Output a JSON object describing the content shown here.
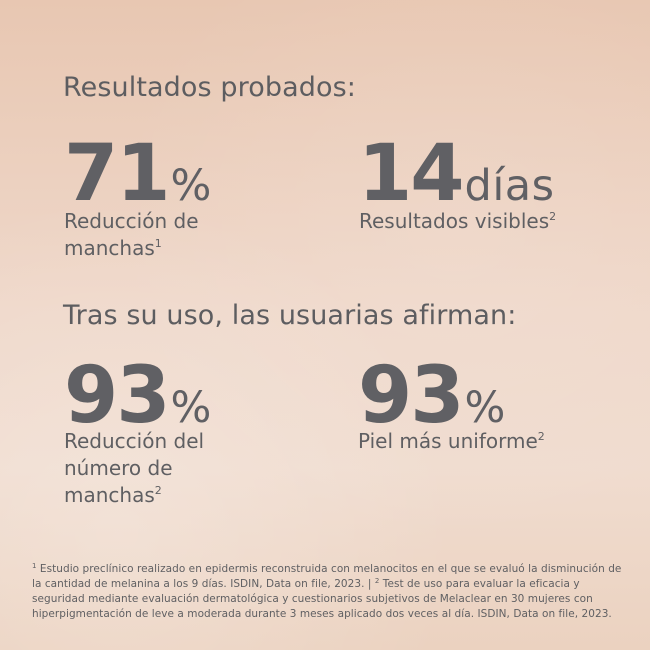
{
  "heading_1": "Resultados probados:",
  "heading_2": "Tras su uso, las usuarias afirman:",
  "stats": [
    {
      "value": "71",
      "unit": "%",
      "label": "Reducción de",
      "label_line2": "manchas",
      "sup": "1"
    },
    {
      "value": "14",
      "unit": "días",
      "label": "Resultados visibles",
      "sup": "2"
    },
    {
      "value": "93",
      "unit": "%",
      "label": "Reducción del",
      "label_line2": "número de",
      "label_line3": "manchas",
      "sup": "2"
    },
    {
      "value": "93",
      "unit": "%",
      "label": "Piel más uniforme",
      "sup": "2"
    }
  ],
  "footnote": {
    "sup1": "1",
    "part1": " Estudio preclínico realizado en epidermis reconstruida con melanocitos en el que se evaluó la disminución de la cantidad de melanina a los 9 días. ISDIN, Data on file, 2023. | ",
    "sup2": "2",
    "part2": " Test de uso para evaluar la eficacia y seguridad mediante evaluación dermatológica y cuestionarios subjetivos de Melaclear en 30 mujeres con hiperpigmentación de leve a moderada durante 3 meses aplicado dos veces al día. ISDIN, Data on file, 2023."
  },
  "colors": {
    "text": "#5f5f62",
    "background_top": "#e8c7b2",
    "background_bottom": "#f0dccf"
  }
}
